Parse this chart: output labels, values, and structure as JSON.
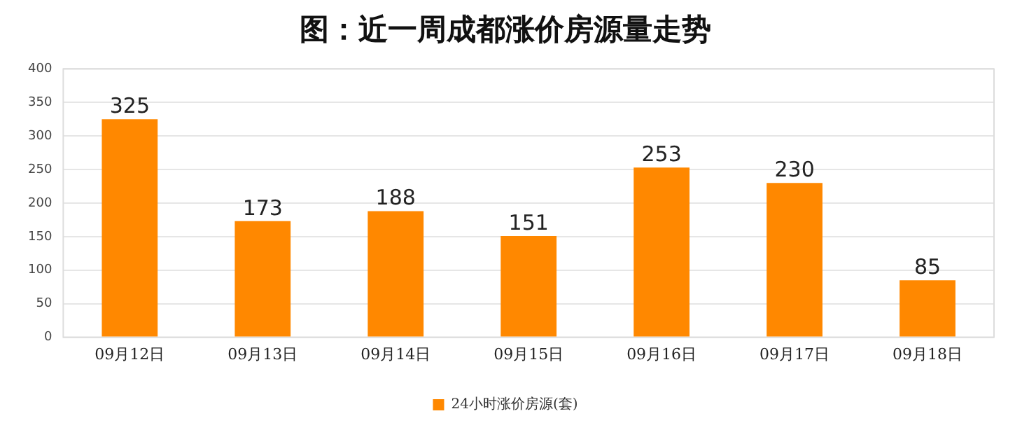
{
  "chart_data": {
    "type": "bar",
    "title": "图：近一周成都涨价房源量走势",
    "categories": [
      "09月12日",
      "09月13日",
      "09月14日",
      "09月15日",
      "09月16日",
      "09月17日",
      "09月18日"
    ],
    "series": [
      {
        "name": "24小时涨价房源(套)",
        "color": "#ff8800",
        "values": [
          325,
          173,
          188,
          151,
          253,
          230,
          85
        ]
      }
    ],
    "ylim": [
      0,
      400
    ],
    "yticks": [
      0,
      50,
      100,
      150,
      200,
      250,
      300,
      350,
      400
    ],
    "grid": "y",
    "legend": "bottom",
    "data_labels": true
  }
}
